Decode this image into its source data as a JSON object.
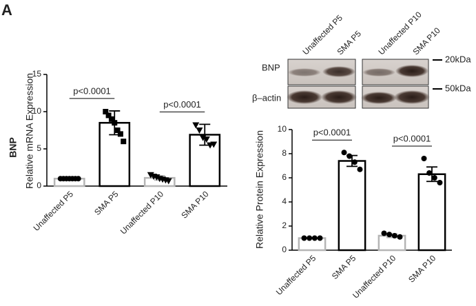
{
  "panel_label": "A",
  "blot": {
    "lanes": [
      "Unaffected P5",
      "SMA P5",
      "Unaffected P10",
      "SMA P10"
    ],
    "rows": [
      "BNP",
      "β–actin"
    ],
    "markers": [
      "20kDa",
      "50kDa"
    ]
  },
  "chart_data": [
    {
      "type": "bar",
      "y_title": "BNP",
      "y_label": "Relative mRNA Expression",
      "categories": [
        "Unaffected P5",
        "SMA P5",
        "Unaffected P10",
        "SMA P10"
      ],
      "values": [
        1.0,
        8.5,
        1.1,
        6.9
      ],
      "errors": [
        0,
        1.6,
        0.3,
        1.4
      ],
      "points": [
        [
          1,
          1,
          1,
          1,
          1,
          1,
          1
        ],
        [
          10,
          9.5,
          9,
          8.5,
          7.5,
          7,
          6
        ],
        [
          1.5,
          1.3,
          1.2,
          1.0,
          0.9,
          0.8,
          0.7
        ],
        [
          8.2,
          7.5,
          6.5,
          6.3,
          5.5,
          5.6
        ]
      ],
      "markers": [
        "circle",
        "square",
        "triangle-down",
        "triangle-down"
      ],
      "bar_colors": [
        "#b5b5b5",
        "#000000",
        "#b5b5b5",
        "#000000"
      ],
      "point_color": "#000000",
      "ylim": [
        0,
        15
      ],
      "yticks": [
        0,
        5,
        10,
        15
      ],
      "annotations": [
        {
          "text": "p<0.0001",
          "between": [
            "Unaffected P5",
            "SMA P5"
          ]
        },
        {
          "text": "p<0.0001",
          "between": [
            "Unaffected P10",
            "SMA P10"
          ]
        }
      ]
    },
    {
      "type": "bar",
      "y_label": "Relative Protein Expression",
      "categories": [
        "Unaffected P5",
        "SMA P5",
        "Unaffected P10",
        "SMA P10"
      ],
      "values": [
        1.0,
        7.4,
        1.2,
        6.3
      ],
      "errors": [
        0,
        0.45,
        0.15,
        0.6
      ],
      "points": [
        [
          1,
          1,
          1,
          1
        ],
        [
          8.1,
          7.8,
          7.3,
          6.7
        ],
        [
          1.4,
          1.3,
          1.2,
          1.1
        ],
        [
          7.6,
          6.4,
          6.0,
          5.6
        ]
      ],
      "markers": [
        "circle",
        "circle",
        "circle",
        "circle"
      ],
      "bar_colors": [
        "#b5b5b5",
        "#000000",
        "#b5b5b5",
        "#000000"
      ],
      "point_color": "#000000",
      "ylim": [
        0,
        10
      ],
      "yticks": [
        0,
        2,
        4,
        6,
        8,
        10
      ],
      "annotations": [
        {
          "text": "p<0.0001",
          "between": [
            "Unaffected P5",
            "SMA P5"
          ]
        },
        {
          "text": "p<0.0001",
          "between": [
            "Unaffected P10",
            "SMA P10"
          ]
        }
      ]
    }
  ]
}
